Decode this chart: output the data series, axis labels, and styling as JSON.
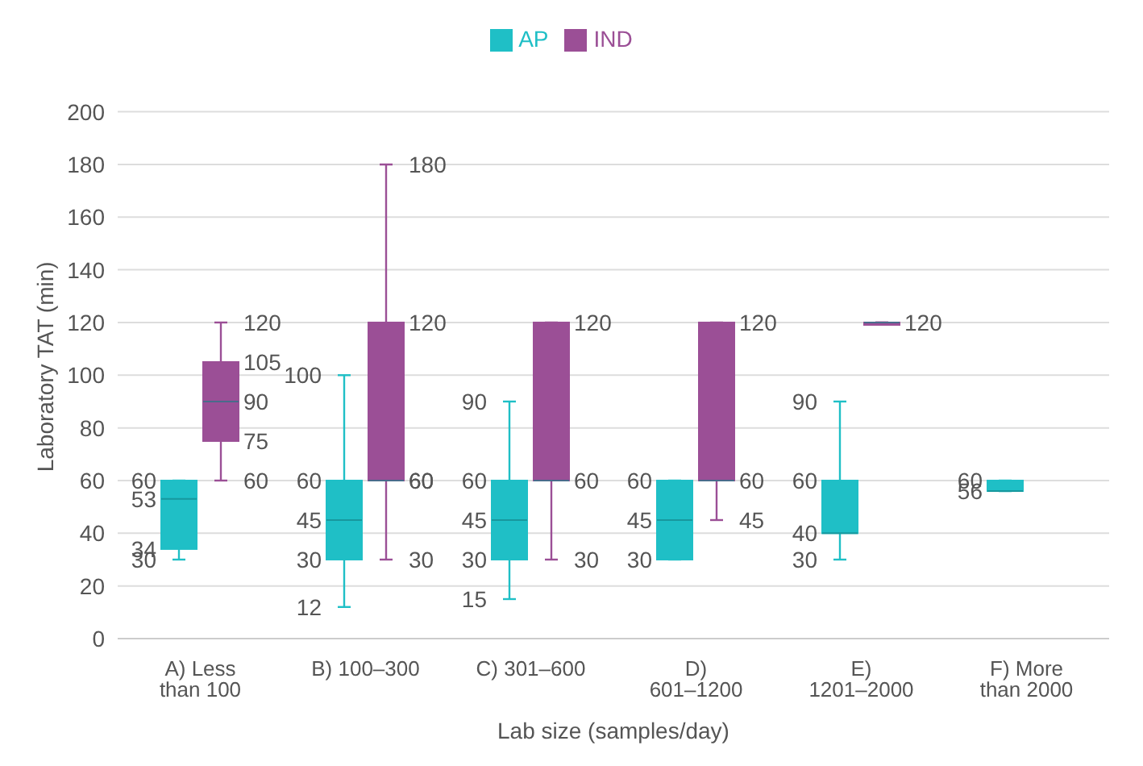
{
  "chart_data": {
    "type": "box",
    "xlabel": "Lab size (samples/day)",
    "ylabel": "Laboratory TAT (min)",
    "categories": [
      "A) Less than 100",
      "B) 100–300",
      "C) 301–600",
      "D) 601–1200",
      "E) 1201–2000",
      "F) More than 2000"
    ],
    "series": [
      {
        "name": "AP",
        "color": "#1fbfc6",
        "boxes": [
          {
            "low": 30,
            "q1": 34,
            "median": 53,
            "q3": 60,
            "high": 60
          },
          {
            "low": 12,
            "q1": 30,
            "median": 45,
            "q3": 60,
            "high": 100
          },
          {
            "low": 15,
            "q1": 30,
            "median": 45,
            "q3": 60,
            "high": 90
          },
          {
            "low": 30,
            "q1": 30,
            "median": 45,
            "q3": 60,
            "high": 60
          },
          {
            "low": 30,
            "q1": 40,
            "median": 40,
            "q3": 60,
            "high": 90
          },
          {
            "low": 56,
            "q1": 56,
            "median": 56,
            "q3": 60,
            "high": 60
          }
        ],
        "value_labels": [
          [
            "30",
            "34",
            "53",
            "60",
            null
          ],
          [
            "12",
            "30",
            "45",
            "60",
            "100"
          ],
          [
            "15",
            "30",
            "45",
            "60",
            "90"
          ],
          [
            null,
            "30",
            "45",
            "60",
            null
          ],
          [
            "30",
            "40",
            null,
            "60",
            "90"
          ],
          [
            null,
            "56",
            null,
            "60",
            null
          ]
        ]
      },
      {
        "name": "IND",
        "color": "#9b4f96",
        "boxes": [
          {
            "low": 60,
            "q1": 75,
            "median": 90,
            "q3": 105,
            "high": 120
          },
          {
            "low": 30,
            "q1": 60,
            "median": 60,
            "q3": 120,
            "high": 180
          },
          {
            "low": 30,
            "q1": 60,
            "median": 60,
            "q3": 120,
            "high": 120
          },
          {
            "low": 45,
            "q1": 60,
            "median": 60,
            "q3": 120,
            "high": 120
          },
          {
            "low": 120,
            "q1": 120,
            "median": 120,
            "q3": 120,
            "high": 120
          },
          null
        ],
        "value_labels": [
          [
            "60",
            "75",
            "90",
            "105",
            "120"
          ],
          [
            "30",
            "60",
            "60",
            "120",
            "180"
          ],
          [
            "30",
            "60",
            null,
            "120",
            null
          ],
          [
            "45",
            "60",
            null,
            "120",
            null
          ],
          [
            null,
            null,
            null,
            null,
            "120"
          ],
          null
        ]
      }
    ],
    "ylim": [
      0,
      200
    ],
    "yticks": [
      0,
      20,
      40,
      60,
      80,
      100,
      120,
      140,
      160,
      180,
      200
    ],
    "grid": "y",
    "legend": "top"
  }
}
